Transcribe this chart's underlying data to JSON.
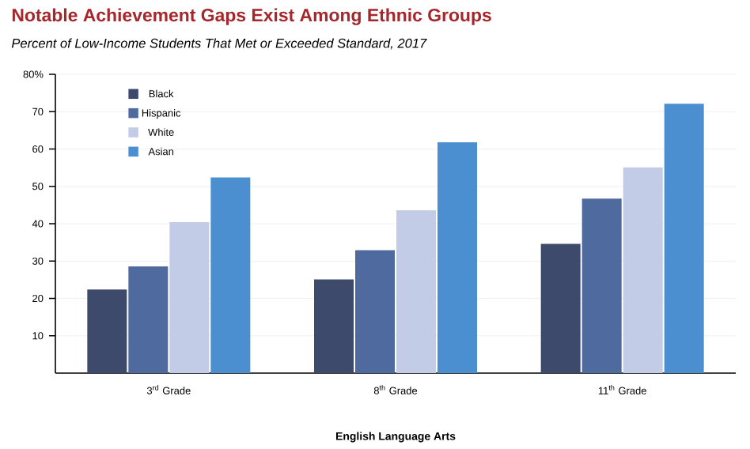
{
  "chart_data": {
    "type": "bar",
    "title": "Notable Achievement Gaps Exist Among Ethnic Groups",
    "subtitle": "Percent of Low-Income Students That Met or Exceeded Standard, 2017",
    "xlabel": "English Language Arts",
    "categories": [
      "3$^{rd}$ Grade",
      "8$^{th}$ Grade",
      "11$^{th}$ Grade"
    ],
    "series": [
      {
        "name": "Black",
        "color": "#3d4a6b",
        "values": [
          22.4,
          25.1,
          34.6
        ]
      },
      {
        "name": "Hispanic",
        "color": "#4e6a9e",
        "values": [
          28.6,
          32.9,
          46.7
        ]
      },
      {
        "name": "White",
        "color": "#c3cce6",
        "values": [
          40.4,
          43.6,
          55.1
        ]
      },
      {
        "name": "Asian",
        "color": "#4b8fd0",
        "values": [
          52.4,
          61.8,
          72.1
        ]
      }
    ],
    "ylim": [
      0,
      80
    ],
    "yticks": [
      10,
      20,
      30,
      40,
      50,
      60,
      70,
      {
        "value": 80,
        "label": "80%"
      }
    ],
    "grid": "y",
    "legend": "top left"
  }
}
